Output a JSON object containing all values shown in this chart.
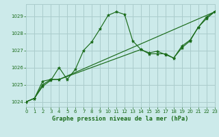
{
  "background_color": "#cceaea",
  "grid_color": "#aacccc",
  "line_color": "#1a6b1a",
  "marker_color": "#1a6b1a",
  "title": "Graphe pression niveau de la mer (hPa)",
  "xlim": [
    0,
    23
  ],
  "ylim": [
    1023.7,
    1029.7
  ],
  "yticks": [
    1024,
    1025,
    1026,
    1027,
    1028,
    1029
  ],
  "xticks": [
    0,
    1,
    2,
    3,
    4,
    5,
    6,
    7,
    8,
    9,
    10,
    11,
    12,
    13,
    14,
    15,
    16,
    17,
    18,
    19,
    20,
    21,
    22,
    23
  ],
  "series": [
    {
      "x": [
        0,
        1,
        2,
        3,
        4,
        5,
        6,
        7,
        8,
        9,
        10,
        11,
        12,
        13,
        14,
        15,
        16,
        17,
        18,
        19,
        20,
        21,
        22,
        23
      ],
      "y": [
        1024.0,
        1024.2,
        1024.9,
        1025.25,
        1026.0,
        1025.3,
        1025.9,
        1027.0,
        1027.5,
        1028.25,
        1029.05,
        1029.25,
        1029.1,
        1027.55,
        1027.05,
        1026.85,
        1026.95,
        1026.75,
        1026.55,
        1027.25,
        1027.6,
        1028.35,
        1028.95,
        1029.25
      ]
    },
    {
      "x": [
        0,
        1,
        2,
        3,
        4,
        23
      ],
      "y": [
        1024.0,
        1024.2,
        1025.2,
        1025.3,
        1025.3,
        1029.25
      ]
    },
    {
      "x": [
        0,
        1,
        2,
        3,
        4,
        14,
        15,
        16,
        17,
        18,
        19,
        20,
        21,
        22,
        23
      ],
      "y": [
        1024.0,
        1024.2,
        1025.0,
        1025.3,
        1025.3,
        1027.05,
        1026.8,
        1026.8,
        1026.8,
        1026.55,
        1027.15,
        1027.55,
        1028.35,
        1028.85,
        1029.25
      ]
    }
  ]
}
